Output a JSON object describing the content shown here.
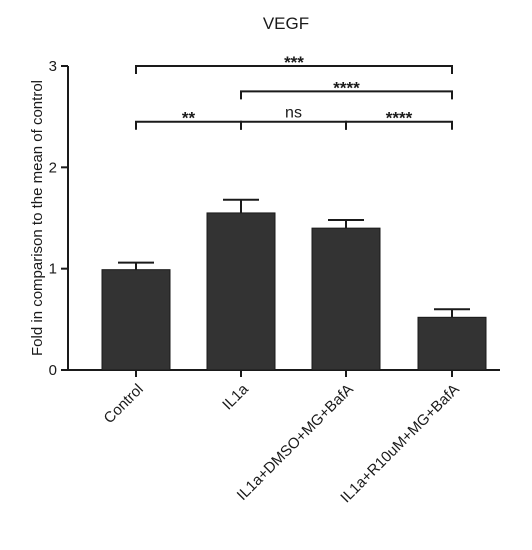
{
  "chart_data": {
    "type": "bar",
    "title": "VEGF",
    "xlabel": "",
    "ylabel": "Fold in comparison to the mean of control",
    "ylim": [
      0,
      3
    ],
    "yticks": [
      "0",
      "1",
      "2",
      "3"
    ],
    "grid": false,
    "categories": [
      "Control",
      "IL1a",
      "IL1a+DMSO+MG+BafA",
      "IL1a+R10uM+MG+BafA"
    ],
    "values": [
      0.99,
      1.55,
      1.4,
      0.52
    ],
    "errors": [
      0.07,
      0.13,
      0.08,
      0.08
    ],
    "bar_color": "#333333",
    "significance": [
      {
        "from": 0,
        "to": 1,
        "label": "**",
        "y": 2.45
      },
      {
        "from": 1,
        "to": 2,
        "label": "ns",
        "y": 2.45
      },
      {
        "from": 2,
        "to": 3,
        "label": "****",
        "y": 2.45
      },
      {
        "from": 1,
        "to": 3,
        "label": "****",
        "y": 2.75
      },
      {
        "from": 0,
        "to": 3,
        "label": "***",
        "y": 3.0
      }
    ]
  }
}
